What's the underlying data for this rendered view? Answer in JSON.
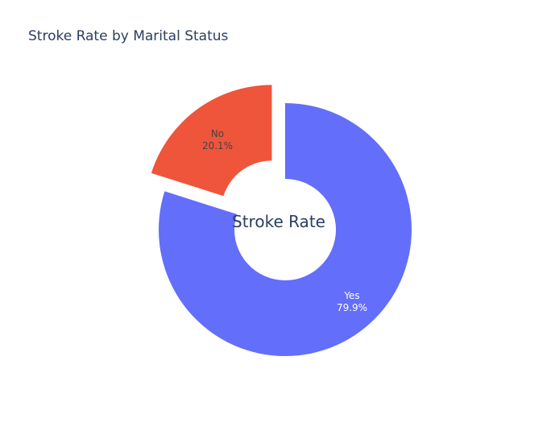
{
  "chart_data": {
    "type": "pie",
    "title": "Stroke Rate by Marital Status",
    "hole_text": "Stroke Rate",
    "slices": [
      {
        "label": "Yes",
        "percent": 79.9,
        "percent_text": "79.9%",
        "color": "#636efa",
        "text_color": "#ffffff",
        "pulled": false
      },
      {
        "label": "No",
        "percent": 20.1,
        "percent_text": "20.1%",
        "color": "#ef553b",
        "text_color": "#444444",
        "pulled": true
      }
    ]
  }
}
